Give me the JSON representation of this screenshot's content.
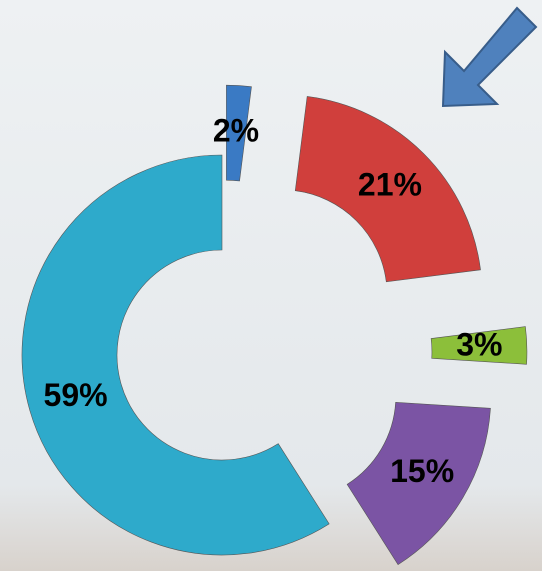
{
  "chart_data": {
    "type": "donut",
    "values": [
      2,
      21,
      3,
      15,
      59
    ],
    "value_labels": [
      "2%",
      "21%",
      "3%",
      "15%",
      "59%"
    ],
    "colors": [
      "#3a7ac4",
      "#d03f3c",
      "#8cbf3a",
      "#7b54a4",
      "#2eaacb"
    ]
  }
}
